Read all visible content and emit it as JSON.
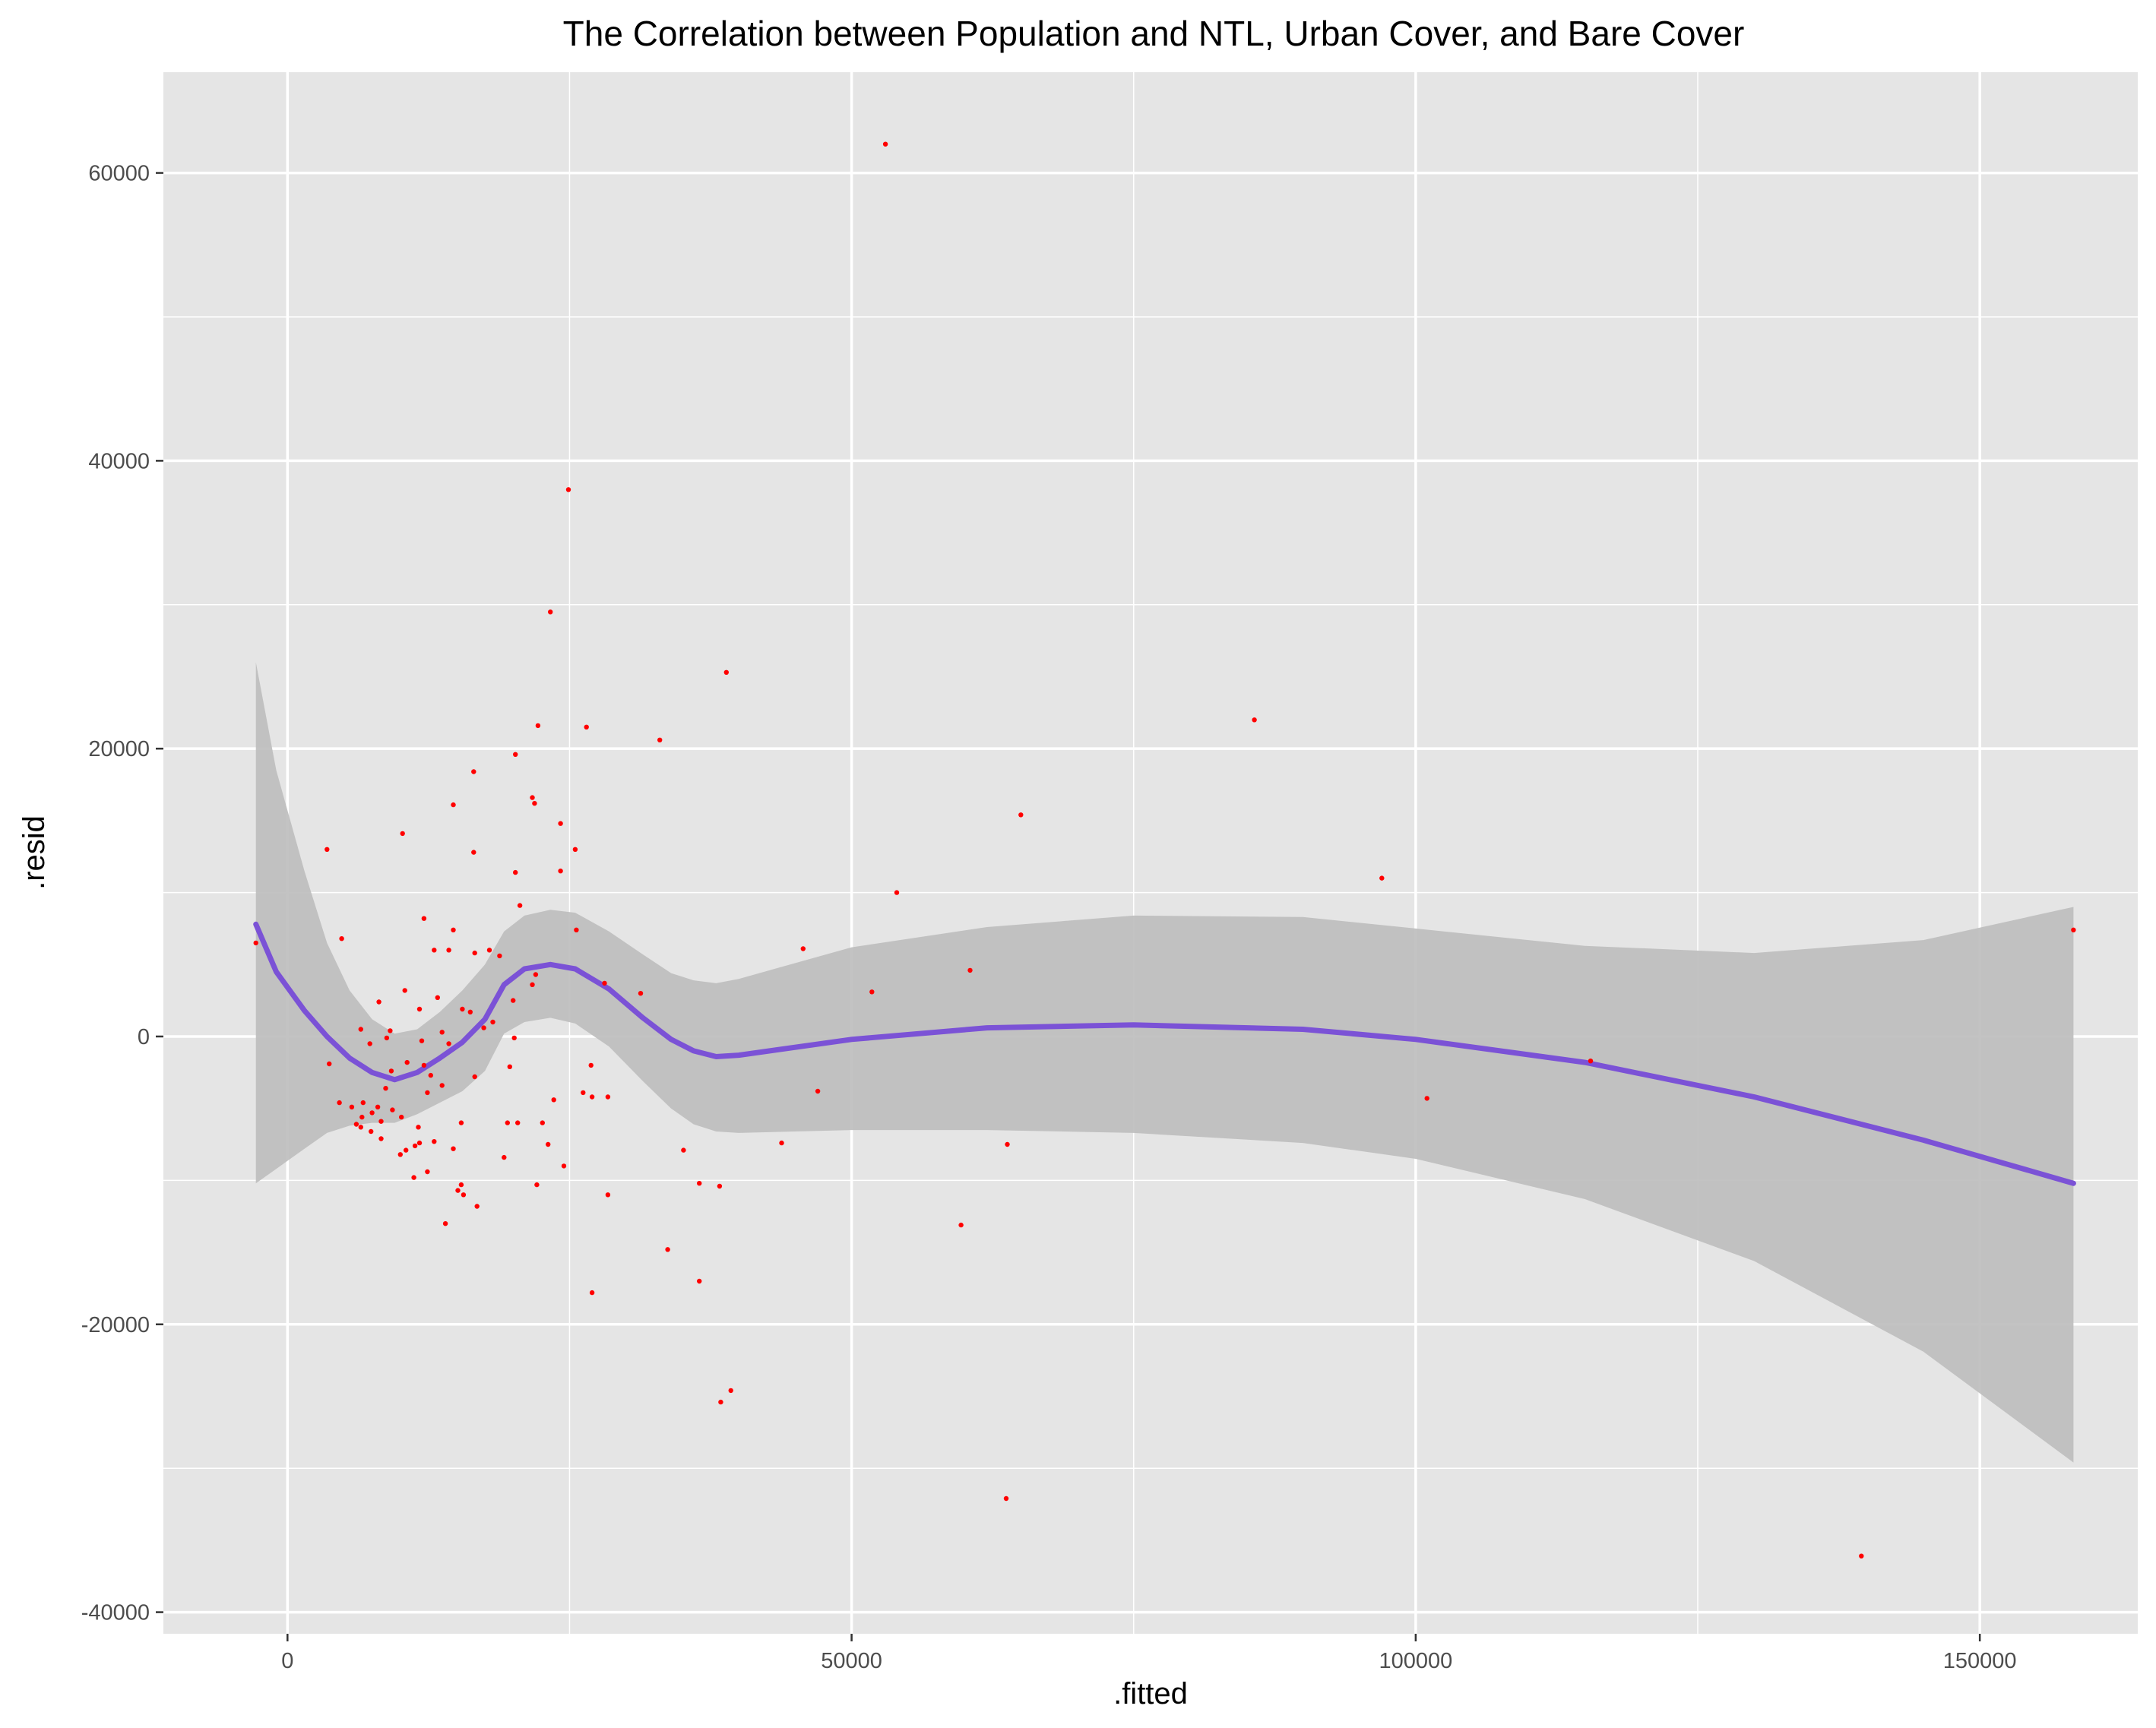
{
  "chart_data": {
    "type": "scatter",
    "title": "The Correlation between Population and NTL, Urban Cover, and Bare Cover",
    "xlabel": ".fitted",
    "ylabel": ".resid",
    "xlim": [
      -11000,
      164000
    ],
    "ylim": [
      -41500,
      67000
    ],
    "x_ticks": [
      0,
      50000,
      100000,
      150000
    ],
    "x_tick_labels": [
      "0",
      "50000",
      "100000",
      "150000"
    ],
    "x_minor_ticks": [
      -25000,
      25000,
      75000,
      125000
    ],
    "y_ticks": [
      -40000,
      -20000,
      0,
      20000,
      40000,
      60000
    ],
    "y_tick_labels": [
      "-40000",
      "-20000",
      "0",
      "20000",
      "40000",
      "60000"
    ],
    "y_minor_ticks": [
      -30000,
      -10000,
      10000,
      30000,
      50000
    ],
    "grid": true,
    "legend": "none",
    "colors": {
      "panel": "#e5e5e5",
      "grid": "#ffffff",
      "points": "#ff0000",
      "smooth_line": "#7b52d6",
      "confidence_band": "#bdbdbd"
    },
    "points": [
      [
        53000,
        62000
      ],
      [
        24900,
        38000
      ],
      [
        23300,
        29500
      ],
      [
        38900,
        25300
      ],
      [
        85700,
        22000
      ],
      [
        22200,
        21600
      ],
      [
        26500,
        21500
      ],
      [
        33000,
        20600
      ],
      [
        20200,
        19600
      ],
      [
        16500,
        18400
      ],
      [
        21700,
        16600
      ],
      [
        14700,
        16100
      ],
      [
        21900,
        16200
      ],
      [
        65000,
        15400
      ],
      [
        24200,
        14800
      ],
      [
        10200,
        14100
      ],
      [
        25500,
        13000
      ],
      [
        3500,
        13000
      ],
      [
        16500,
        12800
      ],
      [
        20200,
        11400
      ],
      [
        24200,
        11500
      ],
      [
        97000,
        11000
      ],
      [
        54000,
        10000
      ],
      [
        20600,
        9100
      ],
      [
        12100,
        8200
      ],
      [
        16600,
        5800
      ],
      [
        4800,
        6800
      ],
      [
        -2800,
        6500
      ],
      [
        13000,
        6000
      ],
      [
        14300,
        6000
      ],
      [
        17900,
        6000
      ],
      [
        18800,
        5600
      ],
      [
        45700,
        6100
      ],
      [
        158300,
        7400
      ],
      [
        14700,
        7400
      ],
      [
        25600,
        7400
      ],
      [
        28100,
        3700
      ],
      [
        22000,
        4300
      ],
      [
        60500,
        4600
      ],
      [
        31300,
        3000
      ],
      [
        21700,
        3600
      ],
      [
        51800,
        3100
      ],
      [
        10400,
        3200
      ],
      [
        13300,
        2700
      ],
      [
        8100,
        2400
      ],
      [
        20000,
        2500
      ],
      [
        11700,
        1900
      ],
      [
        15500,
        1900
      ],
      [
        16200,
        1700
      ],
      [
        18200,
        1000
      ],
      [
        17400,
        600
      ],
      [
        6500,
        500
      ],
      [
        9100,
        400
      ],
      [
        13700,
        300
      ],
      [
        8800,
        -100
      ],
      [
        11900,
        -300
      ],
      [
        7300,
        -500
      ],
      [
        14300,
        -500
      ],
      [
        20100,
        -100
      ],
      [
        10600,
        -1800
      ],
      [
        3700,
        -1900
      ],
      [
        12100,
        -2000
      ],
      [
        115500,
        -1700
      ],
      [
        9200,
        -2400
      ],
      [
        19700,
        -2100
      ],
      [
        12700,
        -2700
      ],
      [
        16600,
        -2800
      ],
      [
        13700,
        -3400
      ],
      [
        8700,
        -3600
      ],
      [
        12400,
        -3900
      ],
      [
        26900,
        -2000
      ],
      [
        28400,
        -4200
      ],
      [
        47000,
        -3800
      ],
      [
        27000,
        -4200
      ],
      [
        26200,
        -3900
      ],
      [
        101000,
        -4300
      ],
      [
        4600,
        -4600
      ],
      [
        23600,
        -4400
      ],
      [
        5700,
        -4900
      ],
      [
        8000,
        -4900
      ],
      [
        6700,
        -4600
      ],
      [
        7500,
        -5300
      ],
      [
        9300,
        -5100
      ],
      [
        6600,
        -5600
      ],
      [
        6100,
        -6100
      ],
      [
        8300,
        -5900
      ],
      [
        10100,
        -5600
      ],
      [
        6500,
        -6300
      ],
      [
        11600,
        -6300
      ],
      [
        15400,
        -6000
      ],
      [
        20400,
        -6000
      ],
      [
        19500,
        -6000
      ],
      [
        22600,
        -6000
      ],
      [
        7400,
        -6600
      ],
      [
        8300,
        -7100
      ],
      [
        13000,
        -7300
      ],
      [
        11700,
        -7400
      ],
      [
        11300,
        -7600
      ],
      [
        23100,
        -7500
      ],
      [
        14700,
        -7800
      ],
      [
        10500,
        -7900
      ],
      [
        35100,
        -7900
      ],
      [
        43800,
        -7400
      ],
      [
        63800,
        -7500
      ],
      [
        10000,
        -8200
      ],
      [
        19200,
        -8400
      ],
      [
        24500,
        -9000
      ],
      [
        12400,
        -9400
      ],
      [
        11200,
        -9800
      ],
      [
        15400,
        -10300
      ],
      [
        36500,
        -10200
      ],
      [
        22100,
        -10300
      ],
      [
        15100,
        -10700
      ],
      [
        38300,
        -10400
      ],
      [
        28400,
        -11000
      ],
      [
        15600,
        -11000
      ],
      [
        16800,
        -11800
      ],
      [
        14000,
        -13000
      ],
      [
        59700,
        -13100
      ],
      [
        33700,
        -14800
      ],
      [
        36500,
        -17000
      ],
      [
        27000,
        -17800
      ],
      [
        39300,
        -24600
      ],
      [
        38400,
        -25400
      ],
      [
        63700,
        -32100
      ],
      [
        139500,
        -36100
      ]
    ],
    "smooth_line": [
      [
        -2800,
        7800
      ],
      [
        -1000,
        4500
      ],
      [
        1500,
        1800
      ],
      [
        3500,
        0
      ],
      [
        5500,
        -1500
      ],
      [
        7500,
        -2500
      ],
      [
        9500,
        -3000
      ],
      [
        11500,
        -2500
      ],
      [
        13500,
        -1500
      ],
      [
        15500,
        -400
      ],
      [
        17500,
        1200
      ],
      [
        19200,
        3600
      ],
      [
        21000,
        4700
      ],
      [
        23300,
        5000
      ],
      [
        25500,
        4700
      ],
      [
        28500,
        3300
      ],
      [
        31500,
        1300
      ],
      [
        34000,
        -200
      ],
      [
        36000,
        -1000
      ],
      [
        38000,
        -1400
      ],
      [
        40000,
        -1300
      ],
      [
        50000,
        -200
      ],
      [
        62000,
        600
      ],
      [
        75000,
        800
      ],
      [
        90000,
        500
      ],
      [
        100000,
        -200
      ],
      [
        115000,
        -1800
      ],
      [
        130000,
        -4200
      ],
      [
        145000,
        -7200
      ],
      [
        158300,
        -10200
      ]
    ],
    "band_upper": [
      [
        -2800,
        26000
      ],
      [
        -1000,
        18500
      ],
      [
        1500,
        11500
      ],
      [
        3500,
        6500
      ],
      [
        5500,
        3200
      ],
      [
        7500,
        1200
      ],
      [
        9500,
        200
      ],
      [
        11500,
        500
      ],
      [
        13500,
        1700
      ],
      [
        15500,
        3200
      ],
      [
        17500,
        5000
      ],
      [
        19200,
        7300
      ],
      [
        21000,
        8400
      ],
      [
        23300,
        8800
      ],
      [
        25500,
        8600
      ],
      [
        28500,
        7300
      ],
      [
        31500,
        5700
      ],
      [
        34000,
        4400
      ],
      [
        36000,
        3900
      ],
      [
        38000,
        3700
      ],
      [
        40000,
        4000
      ],
      [
        50000,
        6200
      ],
      [
        62000,
        7600
      ],
      [
        75000,
        8400
      ],
      [
        90000,
        8300
      ],
      [
        100000,
        7500
      ],
      [
        115000,
        6300
      ],
      [
        130000,
        5800
      ],
      [
        145000,
        6700
      ],
      [
        158300,
        9000
      ]
    ],
    "band_lower": [
      [
        -2800,
        -10200
      ],
      [
        -1000,
        -9200
      ],
      [
        1500,
        -7800
      ],
      [
        3500,
        -6700
      ],
      [
        5500,
        -6200
      ],
      [
        7500,
        -6000
      ],
      [
        9500,
        -6000
      ],
      [
        11500,
        -5400
      ],
      [
        13500,
        -4600
      ],
      [
        15500,
        -3800
      ],
      [
        17500,
        -2400
      ],
      [
        19200,
        200
      ],
      [
        21000,
        1000
      ],
      [
        23300,
        1300
      ],
      [
        25500,
        900
      ],
      [
        28500,
        -700
      ],
      [
        31500,
        -3100
      ],
      [
        34000,
        -5000
      ],
      [
        36000,
        -6100
      ],
      [
        38000,
        -6600
      ],
      [
        40000,
        -6700
      ],
      [
        50000,
        -6500
      ],
      [
        62000,
        -6500
      ],
      [
        75000,
        -6700
      ],
      [
        90000,
        -7400
      ],
      [
        100000,
        -8500
      ],
      [
        115000,
        -11300
      ],
      [
        130000,
        -15600
      ],
      [
        145000,
        -21900
      ],
      [
        158300,
        -29600
      ]
    ]
  }
}
